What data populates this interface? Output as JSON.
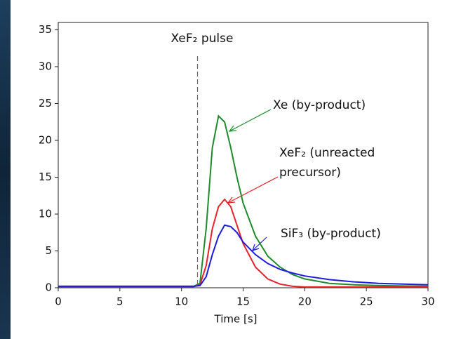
{
  "chart_data": {
    "type": "line",
    "x": [
      0,
      2,
      4,
      6,
      8,
      10,
      11,
      11.5,
      12,
      12.5,
      13,
      13.5,
      14,
      14.5,
      15,
      16,
      17,
      18,
      19,
      20,
      22,
      24,
      26,
      28,
      30
    ],
    "series": [
      {
        "name": "Xe (by-product)",
        "color": "#1e8b2c",
        "values": [
          0.2,
          0.2,
          0.2,
          0.2,
          0.2,
          0.2,
          0.2,
          0.6,
          8,
          19,
          23.3,
          22.5,
          19,
          15,
          11.5,
          7,
          4.3,
          2.8,
          1.8,
          1.2,
          0.6,
          0.4,
          0.3,
          0.25,
          0.2
        ]
      },
      {
        "name": "XeF₂ (unreacted precursor)",
        "color": "#e8212b",
        "values": [
          0.15,
          0.15,
          0.15,
          0.15,
          0.15,
          0.15,
          0.15,
          0.4,
          3,
          8,
          11,
          12,
          11,
          8.5,
          6,
          2.8,
          1.2,
          0.5,
          0.2,
          0.1,
          0.1,
          0.1,
          0.1,
          0.1,
          0.1
        ]
      },
      {
        "name": "SiF₃ (by-product)",
        "color": "#1c1ce0",
        "values": [
          0.2,
          0.2,
          0.2,
          0.2,
          0.2,
          0.2,
          0.2,
          0.3,
          1.5,
          4.5,
          7,
          8.5,
          8.3,
          7.5,
          6.2,
          4.5,
          3.3,
          2.5,
          2,
          1.6,
          1.1,
          0.8,
          0.6,
          0.5,
          0.4
        ]
      }
    ],
    "annotation": "XeF₂ pulse",
    "pulse_x": 11.3,
    "series_labels": [
      [
        "Xe (by-product)"
      ],
      [
        "XeF₂ (unreacted",
        "precursor)"
      ],
      [
        "SiF₃ (by-product)"
      ]
    ],
    "xlabel": "Time [s]",
    "xlim": [
      0,
      30
    ],
    "xticks": [
      0,
      5,
      10,
      15,
      20,
      25,
      30
    ],
    "ylim": [
      0,
      36
    ],
    "yticks": [
      0,
      5,
      10,
      15,
      20,
      25,
      30,
      35
    ]
  }
}
